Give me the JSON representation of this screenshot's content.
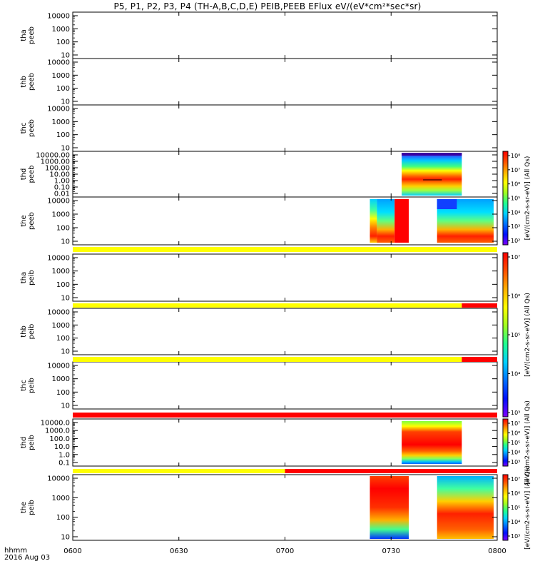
{
  "title": "P5, P1, P2, P3, P4 (TH-A,B,C,D,E) PEIB,PEEB EFlux eV/(eV*cm²*sec*sr)",
  "footer": {
    "time_label": "hhmm",
    "date_label": "2016 Aug 03"
  },
  "colors": {
    "axis": "#000000",
    "yellow": "#ffff00",
    "red": "#ff0000",
    "white": "#ffffff"
  },
  "chart_data": {
    "type": "heatmap",
    "x_axis": {
      "label": "hhmm",
      "range": [
        "0600",
        "0800"
      ],
      "ticks": [
        "0600",
        "0630",
        "0700",
        "0730",
        "0800"
      ]
    },
    "colorbars": [
      {
        "label": "[eV/(cm2-s-sr-eV)] (All Qs)",
        "ticks": [
          "10²",
          "10³",
          "10⁴",
          "10⁵",
          "10⁶",
          "10⁷",
          "10⁸"
        ]
      },
      {
        "label": "[eV/(cm2-s-sr-eV)] (All Qs)",
        "ticks": [
          "10³",
          "10⁴",
          "10⁵",
          "10⁶",
          "10⁷"
        ]
      },
      {
        "label": "[eV/(cm2-s-sr-eV)] (All Qs)",
        "ticks": [
          "10³",
          "10⁴",
          "10⁵",
          "10⁶",
          "10⁷"
        ]
      },
      {
        "label": "[eV/(cm2-s-sr-eV)] (All Qs)",
        "ticks": [
          "10³",
          "10⁴",
          "10⁵",
          "10⁶",
          "10⁷"
        ]
      }
    ],
    "panels": [
      {
        "probe": "tha",
        "product": "peeb",
        "yticks": [
          "10",
          "100",
          "1000",
          "10000"
        ],
        "data_intervals": []
      },
      {
        "probe": "thb",
        "product": "peeb",
        "yticks": [
          "10",
          "100",
          "1000",
          "10000"
        ],
        "data_intervals": []
      },
      {
        "probe": "thc",
        "product": "peeb",
        "yticks": [
          "10",
          "100",
          "1000",
          "10000"
        ],
        "data_intervals": []
      },
      {
        "probe": "thd",
        "product": "peeb",
        "yticks": [
          "0.01",
          "0.10",
          "1.00",
          "10.00",
          "100.00",
          "1000.00",
          "10000.00"
        ],
        "data_intervals": [
          [
            "0733",
            "0750"
          ]
        ]
      },
      {
        "probe": "the",
        "product": "peeb",
        "yticks": [
          "10",
          "100",
          "1000",
          "10000"
        ],
        "data_intervals": [
          [
            "0724",
            "0735"
          ],
          [
            "0743",
            "0759"
          ]
        ]
      },
      {
        "probe": "tha",
        "product": "peib",
        "yticks": [
          "10",
          "100",
          "1000",
          "10000"
        ],
        "data_intervals": []
      },
      {
        "probe": "thb",
        "product": "peib",
        "yticks": [
          "10",
          "100",
          "1000",
          "10000"
        ],
        "data_intervals": []
      },
      {
        "probe": "thc",
        "product": "peib",
        "yticks": [
          "10",
          "100",
          "1000",
          "10000"
        ],
        "data_intervals": []
      },
      {
        "probe": "thd",
        "product": "peib",
        "yticks": [
          "0.1",
          "1.0",
          "10.0",
          "100.0",
          "1000.0",
          "10000.0"
        ],
        "data_intervals": [
          [
            "0733",
            "0750"
          ]
        ]
      },
      {
        "probe": "the",
        "product": "peib",
        "yticks": [
          "10",
          "100",
          "1000",
          "10000"
        ],
        "data_intervals": [
          [
            "0724",
            "0735"
          ],
          [
            "0743",
            "0759"
          ]
        ]
      }
    ],
    "mode_bars": [
      {
        "after_panel": 4,
        "segments": [
          {
            "from": "0600",
            "to": "0800",
            "color": "yellow"
          }
        ]
      },
      {
        "after_panel": 5,
        "segments": [
          {
            "from": "0600",
            "to": "0750",
            "color": "yellow"
          },
          {
            "from": "0750",
            "to": "0800",
            "color": "red"
          }
        ]
      },
      {
        "after_panel": 6,
        "segments": [
          {
            "from": "0600",
            "to": "0750",
            "color": "yellow"
          },
          {
            "from": "0750",
            "to": "0800",
            "color": "red"
          }
        ]
      },
      {
        "after_panel": 7,
        "segments": [
          {
            "from": "0600",
            "to": "0800",
            "color": "red"
          }
        ]
      },
      {
        "after_panel": 8,
        "segments": [
          {
            "from": "0600",
            "to": "0700",
            "color": "yellow"
          },
          {
            "from": "0700",
            "to": "0800",
            "color": "red"
          }
        ]
      }
    ]
  }
}
